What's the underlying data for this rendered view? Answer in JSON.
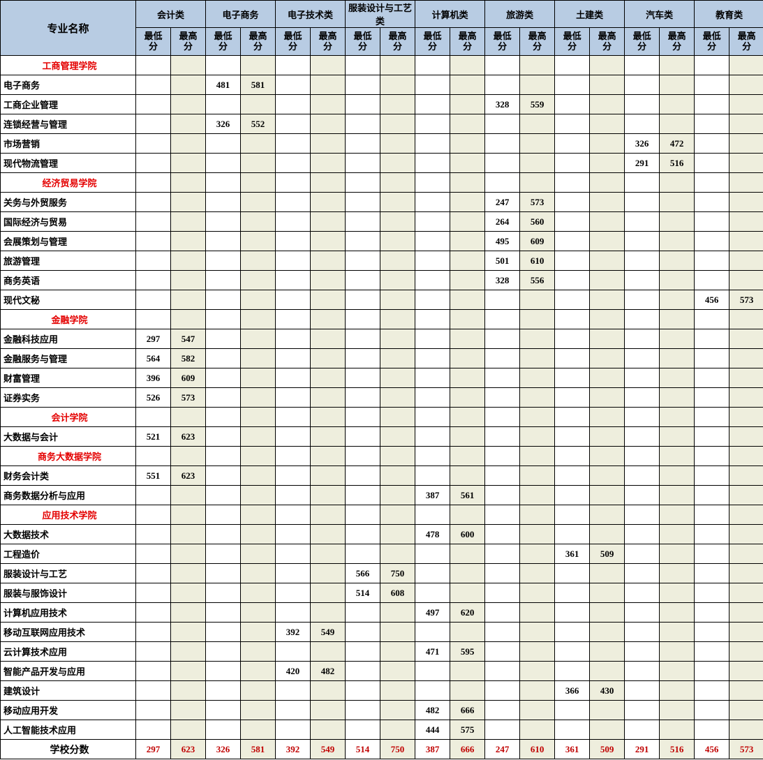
{
  "colors": {
    "header_bg": "#b8cce3",
    "even_bg": "#eeeedd",
    "school_name": "#e40000",
    "summary_value": "#c00000",
    "border": "#000000"
  },
  "header": {
    "name_label": "专业名称",
    "categories": [
      "会计类",
      "电子商务",
      "电子技术类",
      "服装设计与工艺类",
      "计算机类",
      "旅游类",
      "土建类",
      "汽车类",
      "教育类"
    ],
    "min_label": "最低分",
    "max_label": "最高分"
  },
  "summary_label": "学校分数",
  "summary_values": [
    "297",
    "623",
    "326",
    "581",
    "392",
    "549",
    "514",
    "750",
    "387",
    "666",
    "247",
    "610",
    "361",
    "509",
    "291",
    "516",
    "456",
    "573"
  ],
  "rows": [
    {
      "type": "school",
      "name": "工商管理学院"
    },
    {
      "type": "data",
      "name": "电子商务",
      "cells": [
        "",
        "",
        "481",
        "581",
        "",
        "",
        "",
        "",
        "",
        "",
        "",
        "",
        "",
        "",
        "",
        "",
        "",
        ""
      ]
    },
    {
      "type": "data",
      "name": "工商企业管理",
      "cells": [
        "",
        "",
        "",
        "",
        "",
        "",
        "",
        "",
        "",
        "",
        "328",
        "559",
        "",
        "",
        "",
        "",
        "",
        ""
      ]
    },
    {
      "type": "data",
      "name": "连锁经营与管理",
      "cells": [
        "",
        "",
        "326",
        "552",
        "",
        "",
        "",
        "",
        "",
        "",
        "",
        "",
        "",
        "",
        "",
        "",
        "",
        ""
      ]
    },
    {
      "type": "data",
      "name": "市场营销",
      "cells": [
        "",
        "",
        "",
        "",
        "",
        "",
        "",
        "",
        "",
        "",
        "",
        "",
        "",
        "",
        "326",
        "472",
        "",
        ""
      ]
    },
    {
      "type": "data",
      "name": "现代物流管理",
      "cells": [
        "",
        "",
        "",
        "",
        "",
        "",
        "",
        "",
        "",
        "",
        "",
        "",
        "",
        "",
        "291",
        "516",
        "",
        ""
      ]
    },
    {
      "type": "school",
      "name": "经济贸易学院"
    },
    {
      "type": "data",
      "name": "关务与外贸服务",
      "cells": [
        "",
        "",
        "",
        "",
        "",
        "",
        "",
        "",
        "",
        "",
        "247",
        "573",
        "",
        "",
        "",
        "",
        "",
        ""
      ]
    },
    {
      "type": "data",
      "name": "国际经济与贸易",
      "cells": [
        "",
        "",
        "",
        "",
        "",
        "",
        "",
        "",
        "",
        "",
        "264",
        "560",
        "",
        "",
        "",
        "",
        "",
        ""
      ]
    },
    {
      "type": "data",
      "name": "会展策划与管理",
      "cells": [
        "",
        "",
        "",
        "",
        "",
        "",
        "",
        "",
        "",
        "",
        "495",
        "609",
        "",
        "",
        "",
        "",
        "",
        ""
      ]
    },
    {
      "type": "data",
      "name": "旅游管理",
      "cells": [
        "",
        "",
        "",
        "",
        "",
        "",
        "",
        "",
        "",
        "",
        "501",
        "610",
        "",
        "",
        "",
        "",
        "",
        ""
      ]
    },
    {
      "type": "data",
      "name": "商务英语",
      "cells": [
        "",
        "",
        "",
        "",
        "",
        "",
        "",
        "",
        "",
        "",
        "328",
        "556",
        "",
        "",
        "",
        "",
        "",
        ""
      ]
    },
    {
      "type": "data",
      "name": "现代文秘",
      "cells": [
        "",
        "",
        "",
        "",
        "",
        "",
        "",
        "",
        "",
        "",
        "",
        "",
        "",
        "",
        "",
        "",
        "456",
        "573"
      ]
    },
    {
      "type": "school",
      "name": "金融学院"
    },
    {
      "type": "data",
      "name": "金融科技应用",
      "cells": [
        "297",
        "547",
        "",
        "",
        "",
        "",
        "",
        "",
        "",
        "",
        "",
        "",
        "",
        "",
        "",
        "",
        "",
        ""
      ]
    },
    {
      "type": "data",
      "name": "金融服务与管理",
      "cells": [
        "564",
        "582",
        "",
        "",
        "",
        "",
        "",
        "",
        "",
        "",
        "",
        "",
        "",
        "",
        "",
        "",
        "",
        ""
      ]
    },
    {
      "type": "data",
      "name": "财富管理",
      "cells": [
        "396",
        "609",
        "",
        "",
        "",
        "",
        "",
        "",
        "",
        "",
        "",
        "",
        "",
        "",
        "",
        "",
        "",
        ""
      ]
    },
    {
      "type": "data",
      "name": "证券实务",
      "cells": [
        "526",
        "573",
        "",
        "",
        "",
        "",
        "",
        "",
        "",
        "",
        "",
        "",
        "",
        "",
        "",
        "",
        "",
        ""
      ]
    },
    {
      "type": "school",
      "name": "会计学院"
    },
    {
      "type": "data",
      "name": "大数据与会计",
      "cells": [
        "521",
        "623",
        "",
        "",
        "",
        "",
        "",
        "",
        "",
        "",
        "",
        "",
        "",
        "",
        "",
        "",
        "",
        ""
      ]
    },
    {
      "type": "school",
      "name": "商务大数据学院"
    },
    {
      "type": "data",
      "name": "财务会计类",
      "cells": [
        "551",
        "623",
        "",
        "",
        "",
        "",
        "",
        "",
        "",
        "",
        "",
        "",
        "",
        "",
        "",
        "",
        "",
        ""
      ]
    },
    {
      "type": "data",
      "name": "商务数据分析与应用",
      "cells": [
        "",
        "",
        "",
        "",
        "",
        "",
        "",
        "",
        "387",
        "561",
        "",
        "",
        "",
        "",
        "",
        "",
        "",
        ""
      ]
    },
    {
      "type": "school",
      "name": "应用技术学院"
    },
    {
      "type": "data",
      "name": "大数据技术",
      "cells": [
        "",
        "",
        "",
        "",
        "",
        "",
        "",
        "",
        "478",
        "600",
        "",
        "",
        "",
        "",
        "",
        "",
        "",
        ""
      ]
    },
    {
      "type": "data",
      "name": "工程造价",
      "cells": [
        "",
        "",
        "",
        "",
        "",
        "",
        "",
        "",
        "",
        "",
        "",
        "",
        "361",
        "509",
        "",
        "",
        "",
        ""
      ]
    },
    {
      "type": "data",
      "name": "服装设计与工艺",
      "cells": [
        "",
        "",
        "",
        "",
        "",
        "",
        "566",
        "750",
        "",
        "",
        "",
        "",
        "",
        "",
        "",
        "",
        "",
        ""
      ]
    },
    {
      "type": "data",
      "name": "服装与服饰设计",
      "cells": [
        "",
        "",
        "",
        "",
        "",
        "",
        "514",
        "608",
        "",
        "",
        "",
        "",
        "",
        "",
        "",
        "",
        "",
        ""
      ]
    },
    {
      "type": "data",
      "name": "计算机应用技术",
      "cells": [
        "",
        "",
        "",
        "",
        "",
        "",
        "",
        "",
        "497",
        "620",
        "",
        "",
        "",
        "",
        "",
        "",
        "",
        ""
      ]
    },
    {
      "type": "data",
      "name": "移动互联网应用技术",
      "cells": [
        "",
        "",
        "",
        "",
        "392",
        "549",
        "",
        "",
        "",
        "",
        "",
        "",
        "",
        "",
        "",
        "",
        "",
        ""
      ]
    },
    {
      "type": "data",
      "name": "云计算技术应用",
      "cells": [
        "",
        "",
        "",
        "",
        "",
        "",
        "",
        "",
        "471",
        "595",
        "",
        "",
        "",
        "",
        "",
        "",
        "",
        ""
      ]
    },
    {
      "type": "data",
      "name": "智能产品开发与应用",
      "cells": [
        "",
        "",
        "",
        "",
        "420",
        "482",
        "",
        "",
        "",
        "",
        "",
        "",
        "",
        "",
        "",
        "",
        "",
        ""
      ]
    },
    {
      "type": "data",
      "name": "建筑设计",
      "cells": [
        "",
        "",
        "",
        "",
        "",
        "",
        "",
        "",
        "",
        "",
        "",
        "",
        "366",
        "430",
        "",
        "",
        "",
        ""
      ]
    },
    {
      "type": "data",
      "name": "移动应用开发",
      "cells": [
        "",
        "",
        "",
        "",
        "",
        "",
        "",
        "",
        "482",
        "666",
        "",
        "",
        "",
        "",
        "",
        "",
        "",
        ""
      ]
    },
    {
      "type": "data",
      "name": "人工智能技术应用",
      "cells": [
        "",
        "",
        "",
        "",
        "",
        "",
        "",
        "",
        "444",
        "575",
        "",
        "",
        "",
        "",
        "",
        "",
        "",
        ""
      ]
    }
  ]
}
